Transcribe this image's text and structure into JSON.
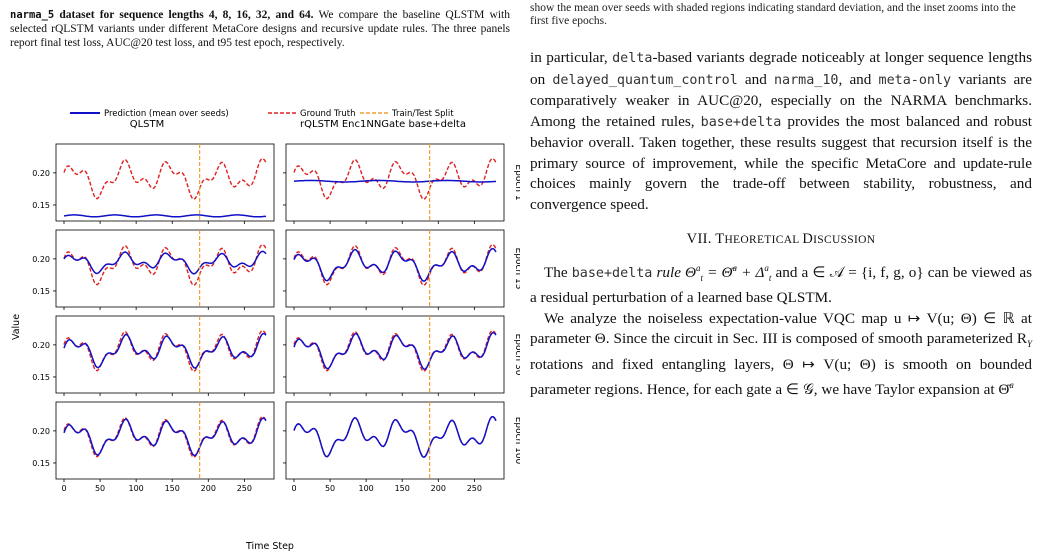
{
  "left_caption": {
    "bold_prefix_code": "narma_5",
    "bold_text": " dataset for sequence lengths 4, 8, 16, 32, and 64.",
    "rest": " We compare the baseline QLSTM with selected rQLSTM variants under different MetaCore designs and recursive update rules. The three panels report final test loss, AUC@20 test loss, and t95 test epoch, respectively."
  },
  "right_caption": "show the mean over seeds with shaded regions indicating standard deviation, and the inset zooms into the first five epochs.",
  "figure": {
    "legend": [
      "Prediction (mean over seeds)",
      "Ground Truth",
      "Train/Test Split"
    ],
    "col_titles": [
      "QLSTM",
      "rQLSTM Enc1NNGate base+delta"
    ],
    "row_labels": [
      "Epoch 1",
      "Epoch 15",
      "Epoch 30",
      "Epoch 100"
    ],
    "ylabel": "Value",
    "xlabel": "Time Step",
    "y_ticks": [
      "0.20",
      "0.15"
    ],
    "x_ticks": [
      "0",
      "50",
      "100",
      "150",
      "200",
      "250"
    ],
    "colors": {
      "prediction": "#1010c8",
      "truth": "#e02020",
      "split": "#f0a030"
    }
  },
  "chart_data": {
    "type": "line",
    "x_range": [
      0,
      280
    ],
    "ylim": [
      0.125,
      0.245
    ],
    "split_x": 188,
    "panels": [
      {
        "row": "Epoch 1",
        "col": "QLSTM",
        "prediction": "near-constant ~0.133"
      },
      {
        "row": "Epoch 1",
        "col": "rQLSTM Enc1NNGate base+delta",
        "prediction": "near-constant ~0.187"
      },
      {
        "row": "Epoch 15",
        "col": "QLSTM",
        "prediction": "tracks truth, amplitude reduced"
      },
      {
        "row": "Epoch 15",
        "col": "rQLSTM Enc1NNGate base+delta",
        "prediction": "tracks truth closely"
      },
      {
        "row": "Epoch 30",
        "col": "QLSTM",
        "prediction": "tracks truth closely"
      },
      {
        "row": "Epoch 30",
        "col": "rQLSTM Enc1NNGate base+delta",
        "prediction": "tracks truth closely"
      },
      {
        "row": "Epoch 100",
        "col": "QLSTM",
        "prediction": "tracks truth closely"
      },
      {
        "row": "Epoch 100",
        "col": "rQLSTM Enc1NNGate base+delta",
        "prediction": "overlaps truth"
      }
    ]
  },
  "body": {
    "p1": [
      {
        "t": "in particular, "
      },
      {
        "c": "delta"
      },
      {
        "t": "-based variants degrade noticeably at longer sequence lengths on "
      },
      {
        "c": "delayed_quantum_control"
      },
      {
        "t": " and "
      },
      {
        "c": "narma_10"
      },
      {
        "t": ", and "
      },
      {
        "c": "meta-only"
      },
      {
        "t": " variants are comparatively weaker in AUC@20, especially on the NARMA benchmarks. Among the retained rules, "
      },
      {
        "c": "base+delta"
      },
      {
        "t": " provides the most balanced and robust behavior overall. Taken together, these results suggest that recursion itself is the primary source of improvement, while the specific MetaCore and update-rule choices mainly govern the trade-off between stability, robustness, and convergence speed."
      }
    ],
    "section_num": "VII. T",
    "section_sc": "HEORETICAL ",
    "section_d": "D",
    "section_sc2": "ISCUSSION",
    "p2_a": "The ",
    "p2_code": "base+delta",
    "p2_b": " rule Θ",
    "p2_c": " = Θ̄",
    "p2_d": " + Δ",
    "p2_e": " and a ∈ 𝒜 = {i, f, g, o} can be viewed as a residual perturbation of a learned base QLSTM.",
    "p3": "We analyze the noiseless expectation-value VQC map u ↦ V(u; Θ) ∈ ℝ at parameter Θ. Since the circuit in Sec. III is composed of smooth parameterized R",
    "p3_sub": "Y",
    "p3_b": " rotations and fixed entangling layers, Θ ↦ V(u; Θ) is smooth on bounded parameter regions. Hence, for each gate a ∈ 𝒢, we have Taylor expansion at Θ̄",
    "p3_sup": "a"
  }
}
